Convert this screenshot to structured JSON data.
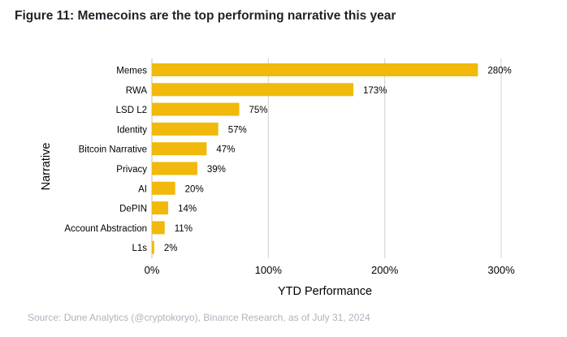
{
  "figure_title": "Figure 11: Memecoins are the top performing narrative this year",
  "source": "Source: Dune Analytics (@cryptokoryo), Binance Research, as of July 31, 2024",
  "colors": {
    "bar": "#F0B90B",
    "grid": "#d0d0d0",
    "text": "#000000"
  },
  "chart_data": {
    "type": "bar",
    "orientation": "horizontal",
    "title": "",
    "xlabel": "YTD Performance",
    "ylabel": "Narrative",
    "categories": [
      "Memes",
      "RWA",
      "LSD L2",
      "Identity",
      "Bitcoin Narrative",
      "Privacy",
      "AI",
      "DePIN",
      "Account Abstraction",
      "L1s"
    ],
    "values": [
      280,
      173,
      75,
      57,
      47,
      39,
      20,
      14,
      11,
      2
    ],
    "value_labels": [
      "280%",
      "173%",
      "75%",
      "57%",
      "47%",
      "39%",
      "20%",
      "14%",
      "11%",
      "2%"
    ],
    "xlim": [
      0,
      300
    ],
    "xticks": [
      0,
      100,
      200,
      300
    ],
    "xtick_labels": [
      "0%",
      "100%",
      "200%",
      "300%"
    ],
    "grid": "vertical",
    "legend": "none"
  }
}
